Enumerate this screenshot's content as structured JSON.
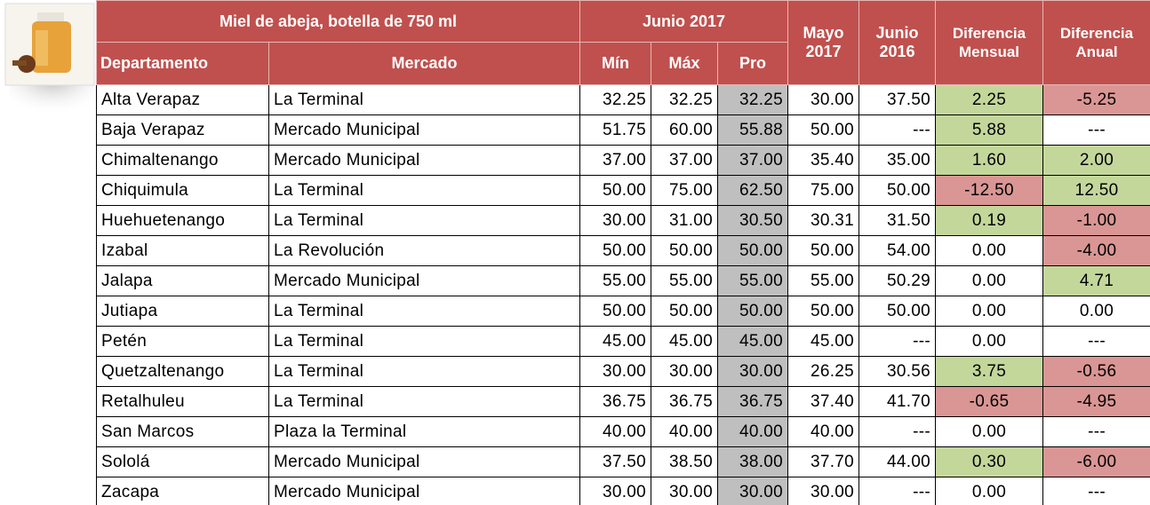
{
  "header": {
    "title": "Miel de abeja, botella de 750 ml",
    "group": "Junio 2017",
    "columns": [
      "Departamento",
      "Mercado",
      "Mín",
      "Máx",
      "Pro",
      "Mayo 2017",
      "Junio 2016",
      "Diferencia Mensual",
      "Diferencia Anual"
    ]
  },
  "table": {
    "rows": [
      [
        "Alta Verapaz",
        "La Terminal",
        "32.25",
        "32.25",
        "32.25",
        "30.00",
        "37.50",
        "2.25",
        "-5.25"
      ],
      [
        "Baja Verapaz",
        "Mercado Municipal",
        "51.75",
        "60.00",
        "55.88",
        "50.00",
        "---",
        "5.88",
        "---"
      ],
      [
        "Chimaltenango",
        "Mercado Municipal",
        "37.00",
        "37.00",
        "37.00",
        "35.40",
        "35.00",
        "1.60",
        "2.00"
      ],
      [
        "Chiquimula",
        "La Terminal",
        "50.00",
        "75.00",
        "62.50",
        "75.00",
        "50.00",
        "-12.50",
        "12.50"
      ],
      [
        "Huehuetenango",
        "La Terminal",
        "30.00",
        "31.00",
        "30.50",
        "30.31",
        "31.50",
        "0.19",
        "-1.00"
      ],
      [
        "Izabal",
        "La Revolución",
        "50.00",
        "50.00",
        "50.00",
        "50.00",
        "54.00",
        "0.00",
        "-4.00"
      ],
      [
        "Jalapa",
        "Mercado Municipal",
        "55.00",
        "55.00",
        "55.00",
        "55.00",
        "50.29",
        "0.00",
        "4.71"
      ],
      [
        "Jutiapa",
        "La Terminal",
        "50.00",
        "50.00",
        "50.00",
        "50.00",
        "50.00",
        "0.00",
        "0.00"
      ],
      [
        "Petén",
        "La Terminal",
        "45.00",
        "45.00",
        "45.00",
        "45.00",
        "---",
        "0.00",
        "---"
      ],
      [
        "Quetzaltenango",
        "La Terminal",
        "30.00",
        "30.00",
        "30.00",
        "26.25",
        "30.56",
        "3.75",
        "-0.56"
      ],
      [
        "Retalhuleu",
        "La Terminal",
        "36.75",
        "36.75",
        "36.75",
        "37.40",
        "41.70",
        "-0.65",
        "-4.95"
      ],
      [
        "San Marcos",
        "Plaza la Terminal",
        "40.00",
        "40.00",
        "40.00",
        "40.00",
        "---",
        "0.00",
        "---"
      ],
      [
        "Sololá",
        "Mercado Municipal",
        "37.50",
        "38.50",
        "38.00",
        "37.70",
        "44.00",
        "0.30",
        "-6.00"
      ],
      [
        "Zacapa",
        "Mercado Municipal",
        "30.00",
        "30.00",
        "30.00",
        "30.00",
        "---",
        "0.00",
        "---"
      ]
    ]
  }
}
